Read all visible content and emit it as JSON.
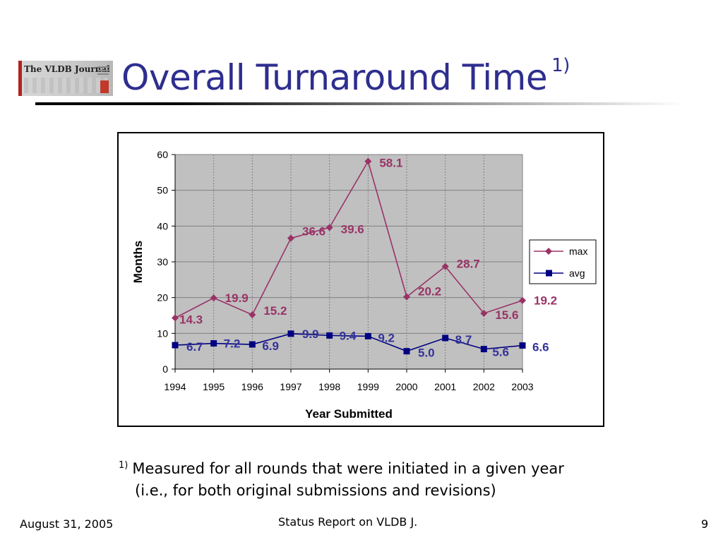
{
  "logo": {
    "text": "The VLDB Journal"
  },
  "title": {
    "main": "Overall Turnaround Time",
    "footnote_ref": "1)"
  },
  "footnote": {
    "mark": "1)",
    "line1": "Measured for all rounds that were initiated in a given year",
    "line2": "(i.e., for both original submissions and revisions)"
  },
  "footer": {
    "date": "August 31, 2005",
    "center": "Status Report on VLDB J.",
    "page": "9"
  },
  "chart_data": {
    "type": "line",
    "xlabel": "Year Submitted",
    "ylabel": "Months",
    "ylim": [
      0,
      60
    ],
    "yticks": [
      0,
      10,
      20,
      30,
      40,
      50,
      60
    ],
    "grid": true,
    "legend": "right",
    "categories": [
      "1994",
      "1995",
      "1996",
      "1997",
      "1998",
      "1999",
      "2000",
      "2001",
      "2002",
      "2003"
    ],
    "series": [
      {
        "name": "max",
        "color": "#993366",
        "marker": "diamond",
        "values": [
          14.3,
          19.9,
          15.2,
          36.6,
          39.6,
          58.1,
          20.2,
          28.7,
          15.6,
          19.2
        ],
        "labels": [
          "14.3",
          "19.9",
          "15.2",
          "36.6",
          "39.6",
          "58.1",
          "20.2",
          "28.7",
          "15.6",
          "19.2"
        ]
      },
      {
        "name": "avg",
        "color": "#000080",
        "label_color": "#333399",
        "marker": "square",
        "values": [
          6.7,
          7.2,
          6.9,
          9.9,
          9.4,
          9.2,
          5.0,
          8.7,
          5.6,
          6.6
        ],
        "labels": [
          "6.7",
          "7.2",
          "6.9",
          "9.9",
          "9.4",
          "9.2",
          "5.0",
          "8.7",
          "5.6",
          "6.6"
        ]
      }
    ]
  }
}
